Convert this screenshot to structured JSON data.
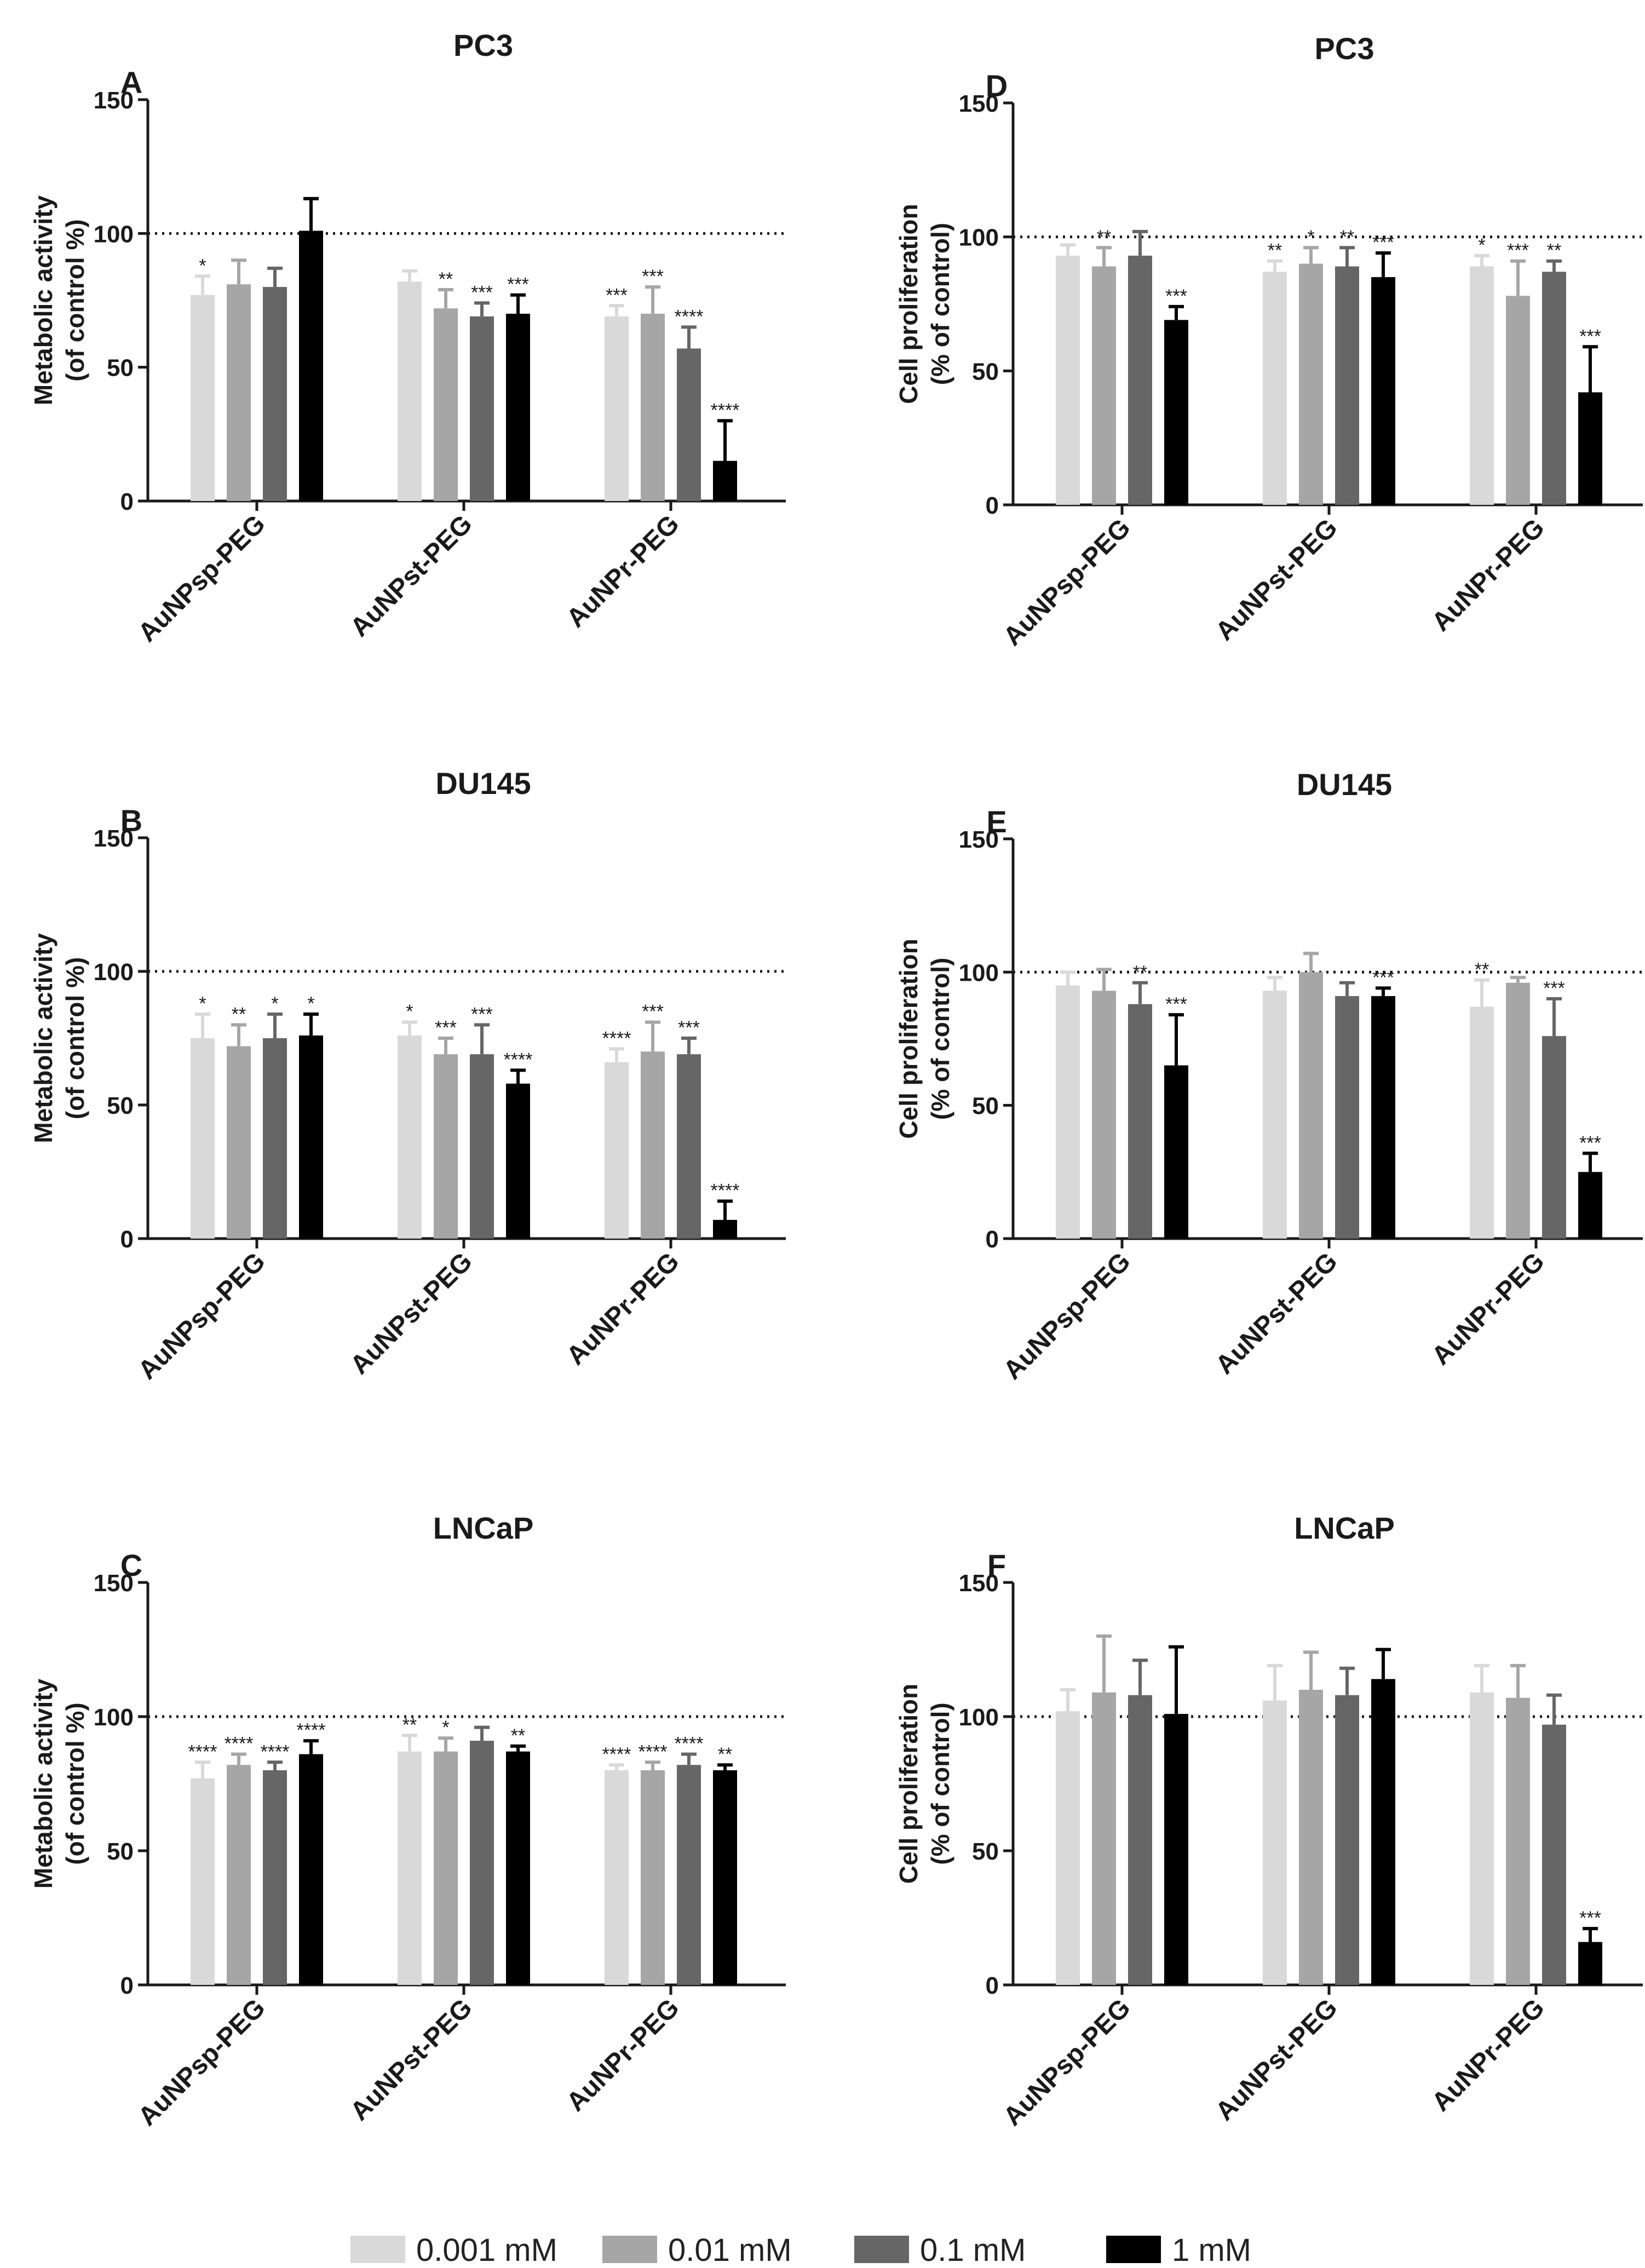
{
  "legend": [
    {
      "label": "0.001 mM",
      "color": "#d9d9d9"
    },
    {
      "label": "0.01 mM",
      "color": "#a6a6a6"
    },
    {
      "label": "0.1 mM",
      "color": "#666666"
    },
    {
      "label": "1 mM",
      "color": "#000000"
    }
  ],
  "chart_data": [
    {
      "panel": "A",
      "title": "PC3",
      "type": "bar",
      "ylabel": [
        "Metabolic activity",
        "(of control %)"
      ],
      "ylim": [
        0,
        150
      ],
      "yticks": [
        0,
        50,
        100,
        150
      ],
      "reference_line": 100,
      "categories": [
        "AuNPsp-PEG",
        "AuNPst-PEG",
        "AuNPr-PEG"
      ],
      "series": [
        {
          "name": "0.001 mM",
          "values": [
            77,
            82,
            69
          ],
          "errors": [
            7,
            4,
            4
          ],
          "significance": [
            "*",
            "",
            "***"
          ]
        },
        {
          "name": "0.01 mM",
          "values": [
            81,
            72,
            70
          ],
          "errors": [
            9,
            7,
            10
          ],
          "significance": [
            "",
            "**",
            "***"
          ]
        },
        {
          "name": "0.1 mM",
          "values": [
            80,
            69,
            57
          ],
          "errors": [
            7,
            5,
            8
          ],
          "significance": [
            "",
            "***",
            "****"
          ]
        },
        {
          "name": "1 mM",
          "values": [
            101,
            70,
            15
          ],
          "errors": [
            12,
            7,
            15
          ],
          "significance": [
            "",
            "***",
            "****"
          ]
        }
      ]
    },
    {
      "panel": "B",
      "title": "DU145",
      "type": "bar",
      "ylabel": [
        "Metabolic activity",
        "(of control %)"
      ],
      "ylim": [
        0,
        150
      ],
      "yticks": [
        0,
        50,
        100,
        150
      ],
      "reference_line": 100,
      "categories": [
        "AuNPsp-PEG",
        "AuNPst-PEG",
        "AuNPr-PEG"
      ],
      "series": [
        {
          "name": "0.001 mM",
          "values": [
            75,
            76,
            66
          ],
          "errors": [
            9,
            5,
            5
          ],
          "significance": [
            "*",
            "*",
            "****"
          ]
        },
        {
          "name": "0.01 mM",
          "values": [
            72,
            69,
            70
          ],
          "errors": [
            8,
            6,
            11
          ],
          "significance": [
            "**",
            "***",
            "***"
          ]
        },
        {
          "name": "0.1 mM",
          "values": [
            75,
            69,
            69
          ],
          "errors": [
            9,
            11,
            6
          ],
          "significance": [
            "*",
            "***",
            "***"
          ]
        },
        {
          "name": "1 mM",
          "values": [
            76,
            58,
            7
          ],
          "errors": [
            8,
            5,
            7
          ],
          "significance": [
            "*",
            "****",
            "****"
          ]
        }
      ]
    },
    {
      "panel": "C",
      "title": "LNCaP",
      "type": "bar",
      "ylabel": [
        "Metabolic activity",
        "(of control %)"
      ],
      "ylim": [
        0,
        150
      ],
      "yticks": [
        0,
        50,
        100,
        150
      ],
      "reference_line": 100,
      "categories": [
        "AuNPsp-PEG",
        "AuNPst-PEG",
        "AuNPr-PEG"
      ],
      "series": [
        {
          "name": "0.001 mM",
          "values": [
            77,
            87,
            80
          ],
          "errors": [
            6,
            6,
            2
          ],
          "significance": [
            "****",
            "**",
            "****"
          ]
        },
        {
          "name": "0.01 mM",
          "values": [
            82,
            87,
            80
          ],
          "errors": [
            4,
            5,
            3
          ],
          "significance": [
            "****",
            "*",
            "****"
          ]
        },
        {
          "name": "0.1 mM",
          "values": [
            80,
            91,
            82
          ],
          "errors": [
            3,
            5,
            4
          ],
          "significance": [
            "****",
            "",
            "****"
          ]
        },
        {
          "name": "1 mM",
          "values": [
            86,
            87,
            80
          ],
          "errors": [
            5,
            2,
            2
          ],
          "significance": [
            "****",
            "**",
            "**"
          ]
        }
      ]
    },
    {
      "panel": "D",
      "title": "PC3",
      "type": "bar",
      "ylabel": [
        "Cell proliferation",
        "(% of control)"
      ],
      "ylim": [
        0,
        150
      ],
      "yticks": [
        0,
        50,
        100,
        150
      ],
      "reference_line": 100,
      "categories": [
        "AuNPsp-PEG",
        "AuNPst-PEG",
        "AuNPr-PEG"
      ],
      "series": [
        {
          "name": "0.001 mM",
          "values": [
            93,
            87,
            89
          ],
          "errors": [
            4,
            4,
            4
          ],
          "significance": [
            "",
            "**",
            "*"
          ]
        },
        {
          "name": "0.01 mM",
          "values": [
            89,
            90,
            78
          ],
          "errors": [
            7,
            6,
            13
          ],
          "significance": [
            "**",
            "*",
            "***"
          ]
        },
        {
          "name": "0.1 mM",
          "values": [
            93,
            89,
            87
          ],
          "errors": [
            9,
            7,
            4
          ],
          "significance": [
            "",
            "**",
            "**"
          ]
        },
        {
          "name": "1 mM",
          "values": [
            69,
            85,
            42
          ],
          "errors": [
            5,
            9,
            17
          ],
          "significance": [
            "***",
            "***",
            "***"
          ]
        }
      ]
    },
    {
      "panel": "E",
      "title": "DU145",
      "type": "bar",
      "ylabel": [
        "Cell proliferation",
        "(% of control)"
      ],
      "ylim": [
        0,
        150
      ],
      "yticks": [
        0,
        50,
        100,
        150
      ],
      "reference_line": 100,
      "categories": [
        "AuNPsp-PEG",
        "AuNPst-PEG",
        "AuNPr-PEG"
      ],
      "series": [
        {
          "name": "0.001 mM",
          "values": [
            95,
            93,
            87
          ],
          "errors": [
            5,
            5,
            10
          ],
          "significance": [
            "",
            "",
            "**"
          ]
        },
        {
          "name": "0.01 mM",
          "values": [
            93,
            100,
            96
          ],
          "errors": [
            8,
            7,
            2
          ],
          "significance": [
            "",
            "",
            ""
          ]
        },
        {
          "name": "0.1 mM",
          "values": [
            88,
            91,
            76
          ],
          "errors": [
            8,
            5,
            14
          ],
          "significance": [
            "**",
            "",
            "***"
          ]
        },
        {
          "name": "1 mM",
          "values": [
            65,
            91,
            25
          ],
          "errors": [
            19,
            3,
            7
          ],
          "significance": [
            "***",
            "***",
            "***"
          ]
        }
      ]
    },
    {
      "panel": "F",
      "title": "LNCaP",
      "type": "bar",
      "ylabel": [
        "Cell proliferation",
        "(% of control)"
      ],
      "ylim": [
        0,
        150
      ],
      "yticks": [
        0,
        50,
        100,
        150
      ],
      "reference_line": 100,
      "categories": [
        "AuNPsp-PEG",
        "AuNPst-PEG",
        "AuNPr-PEG"
      ],
      "series": [
        {
          "name": "0.001 mM",
          "values": [
            102,
            106,
            109
          ],
          "errors": [
            8,
            13,
            10
          ],
          "significance": [
            "",
            "",
            ""
          ]
        },
        {
          "name": "0.01 mM",
          "values": [
            109,
            110,
            107
          ],
          "errors": [
            21,
            14,
            12
          ],
          "significance": [
            "",
            "",
            ""
          ]
        },
        {
          "name": "0.1 mM",
          "values": [
            108,
            108,
            97
          ],
          "errors": [
            13,
            10,
            11
          ],
          "significance": [
            "",
            "",
            ""
          ]
        },
        {
          "name": "1 mM",
          "values": [
            101,
            114,
            16
          ],
          "errors": [
            25,
            11,
            5
          ],
          "significance": [
            "",
            "",
            "***"
          ]
        }
      ]
    }
  ]
}
